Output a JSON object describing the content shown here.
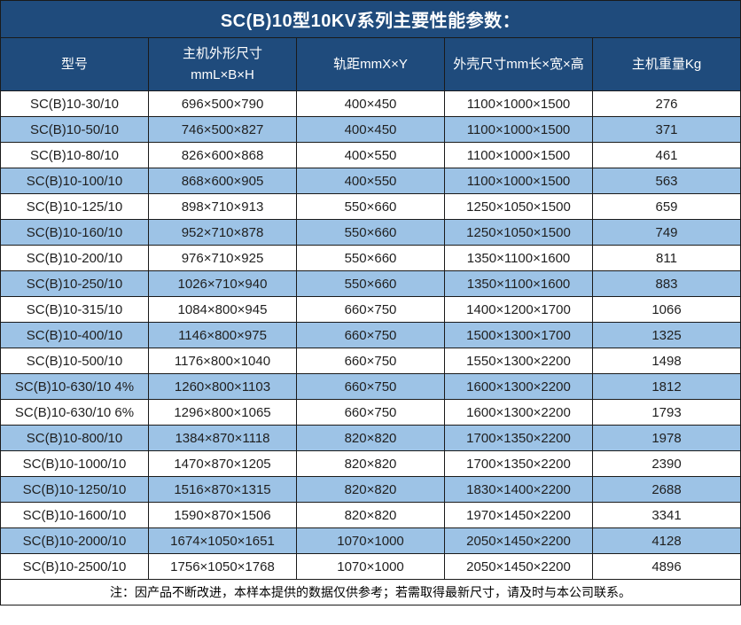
{
  "title": "SC(B)10型10KV系列主要性能参数：",
  "colors": {
    "title_header_bg": "#1F4B7C",
    "alt_row_bg": "#9DC3E6",
    "row_bg": "#FFFFFF",
    "border": "#1A1A1A",
    "header_text": "#FFFFFF",
    "body_text": "#1F1F1F"
  },
  "table": {
    "headers": [
      "型号",
      "主机外形尺寸\nmmL×B×H",
      "轨距mmX×Y",
      "外壳尺寸mm长×宽×高",
      "主机重量Kg"
    ],
    "rows": [
      [
        "SC(B)10-30/10",
        "696×500×790",
        "400×450",
        "1100×1000×1500",
        "276"
      ],
      [
        "SC(B)10-50/10",
        "746×500×827",
        "400×450",
        "1100×1000×1500",
        "371"
      ],
      [
        "SC(B)10-80/10",
        "826×600×868",
        "400×550",
        "1100×1000×1500",
        "461"
      ],
      [
        "SC(B)10-100/10",
        "868×600×905",
        "400×550",
        "1100×1000×1500",
        "563"
      ],
      [
        "SC(B)10-125/10",
        "898×710×913",
        "550×660",
        "1250×1050×1500",
        "659"
      ],
      [
        "SC(B)10-160/10",
        "952×710×878",
        "550×660",
        "1250×1050×1500",
        "749"
      ],
      [
        "SC(B)10-200/10",
        "976×710×925",
        "550×660",
        "1350×1100×1600",
        "811"
      ],
      [
        "SC(B)10-250/10",
        "1026×710×940",
        "550×660",
        "1350×1100×1600",
        "883"
      ],
      [
        "SC(B)10-315/10",
        "1084×800×945",
        "660×750",
        "1400×1200×1700",
        "1066"
      ],
      [
        "SC(B)10-400/10",
        "1146×800×975",
        "660×750",
        "1500×1300×1700",
        "1325"
      ],
      [
        "SC(B)10-500/10",
        "1176×800×1040",
        "660×750",
        "1550×1300×2200",
        "1498"
      ],
      [
        "SC(B)10-630/10 4%",
        "1260×800×1103",
        "660×750",
        "1600×1300×2200",
        "1812"
      ],
      [
        "SC(B)10-630/10 6%",
        "1296×800×1065",
        "660×750",
        "1600×1300×2200",
        "1793"
      ],
      [
        "SC(B)10-800/10",
        "1384×870×1118",
        "820×820",
        "1700×1350×2200",
        "1978"
      ],
      [
        "SC(B)10-1000/10",
        "1470×870×1205",
        "820×820",
        "1700×1350×2200",
        "2390"
      ],
      [
        "SC(B)10-1250/10",
        "1516×870×1315",
        "820×820",
        "1830×1400×2200",
        "2688"
      ],
      [
        "SC(B)10-1600/10",
        "1590×870×1506",
        "820×820",
        "1970×1450×2200",
        "3341"
      ],
      [
        "SC(B)10-2000/10",
        "1674×1050×1651",
        "1070×1000",
        "2050×1450×2200",
        "4128"
      ],
      [
        "SC(B)10-2500/10",
        "1756×1050×1768",
        "1070×1000",
        "2050×1450×2200",
        "4896"
      ]
    ]
  },
  "footer_note": "注：因产品不断改进，本样本提供的数据仅供参考；若需取得最新尺寸，请及时与本公司联系。"
}
